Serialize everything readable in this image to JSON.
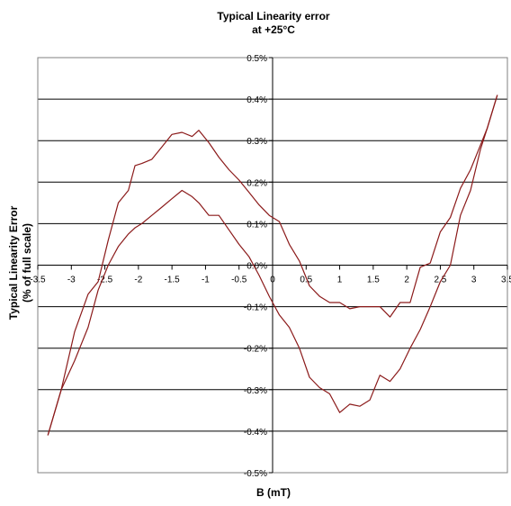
{
  "chart_data": {
    "type": "line",
    "title": [
      "Typical Linearity error",
      "at +25°C"
    ],
    "xlabel": "B (mT)",
    "ylabel": [
      "Typical Linearity Error",
      "(% of full scale)"
    ],
    "xlim": [
      -3.5,
      3.5
    ],
    "ylim": [
      -0.5,
      0.5
    ],
    "x_ticks": [
      -3.5,
      -3,
      -2.5,
      -2,
      -1.5,
      -1,
      -0.5,
      0,
      0.5,
      1,
      1.5,
      2,
      2.5,
      3,
      3.5
    ],
    "x_tick_labels": [
      "-3.5",
      "-3",
      "-2.5",
      "-2",
      "-1.5",
      "-1",
      "-0.5",
      "0",
      "0.5",
      "1",
      "1.5",
      "2",
      "2.5",
      "3",
      "3.5"
    ],
    "y_ticks": [
      0.5,
      0.4,
      0.3,
      0.2,
      0.1,
      0.0,
      -0.1,
      -0.2,
      -0.3,
      -0.4,
      -0.5
    ],
    "y_tick_labels": [
      "0.5%",
      "0.4%",
      "0.3%",
      "0.2%",
      "0.1%",
      "0.0%",
      "-0.1%",
      "-0.2%",
      "-0.3%",
      "-0.4%",
      "-0.5%"
    ],
    "grid": "horizontal",
    "legend": "none",
    "line_color": "#8b1a1a",
    "series": [
      {
        "x": [
          -3.35,
          -3.15,
          -2.95,
          -2.75,
          -2.6,
          -2.45,
          -2.3,
          -2.15,
          -2.05,
          -1.95,
          -1.8,
          -1.65,
          -1.5,
          -1.35,
          -1.2,
          -1.1,
          -0.95,
          -0.8,
          -0.65,
          -0.5,
          -0.35,
          -0.2,
          -0.05,
          0.1,
          0.25,
          0.4,
          0.55,
          0.7,
          0.85,
          1.0,
          1.15,
          1.3,
          1.45,
          1.6,
          1.75,
          1.9,
          2.05,
          2.2,
          2.35,
          2.5,
          2.65,
          2.8,
          2.95,
          3.1,
          3.2,
          3.35
        ],
        "y": [
          -0.41,
          -0.3,
          -0.23,
          -0.15,
          -0.06,
          0.0,
          0.045,
          0.075,
          0.09,
          0.1,
          0.12,
          0.14,
          0.16,
          0.18,
          0.165,
          0.15,
          0.12,
          0.12,
          0.085,
          0.05,
          0.02,
          -0.025,
          -0.075,
          -0.12,
          -0.15,
          -0.2,
          -0.27,
          -0.295,
          -0.31,
          -0.355,
          -0.335,
          -0.34,
          -0.325,
          -0.265,
          -0.28,
          -0.25,
          -0.2,
          -0.155,
          -0.1,
          -0.04,
          0.0,
          0.12,
          0.18,
          0.28,
          0.33,
          0.41
        ]
      },
      {
        "x": [
          -3.35,
          -3.15,
          -2.95,
          -2.75,
          -2.6,
          -2.45,
          -2.3,
          -2.15,
          -2.05,
          -1.95,
          -1.8,
          -1.65,
          -1.5,
          -1.35,
          -1.2,
          -1.1,
          -0.95,
          -0.8,
          -0.65,
          -0.5,
          -0.35,
          -0.2,
          -0.05,
          0.1,
          0.25,
          0.4,
          0.55,
          0.7,
          0.85,
          1.0,
          1.15,
          1.3,
          1.45,
          1.6,
          1.75,
          1.9,
          2.05,
          2.2,
          2.35,
          2.5,
          2.65,
          2.8,
          2.95,
          3.1,
          3.2,
          3.35
        ],
        "y": [
          -0.41,
          -0.3,
          -0.16,
          -0.07,
          -0.04,
          0.06,
          0.15,
          0.18,
          0.24,
          0.245,
          0.255,
          0.285,
          0.315,
          0.32,
          0.31,
          0.325,
          0.295,
          0.26,
          0.23,
          0.205,
          0.175,
          0.145,
          0.12,
          0.105,
          0.05,
          0.01,
          -0.05,
          -0.075,
          -0.09,
          -0.09,
          -0.105,
          -0.1,
          -0.1,
          -0.1,
          -0.125,
          -0.09,
          -0.09,
          -0.005,
          0.005,
          0.08,
          0.115,
          0.185,
          0.23,
          0.29,
          0.33,
          0.41
        ]
      }
    ]
  }
}
